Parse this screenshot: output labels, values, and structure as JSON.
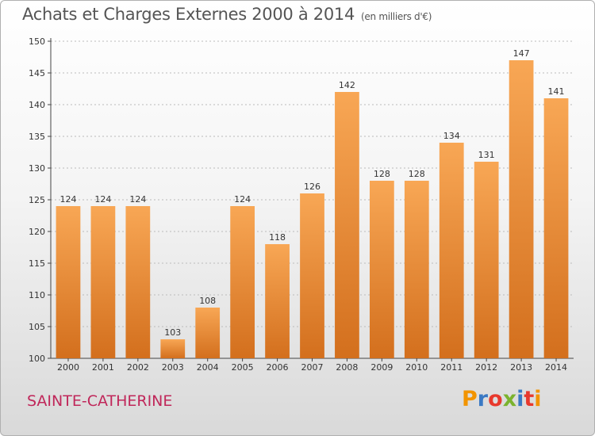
{
  "header": {
    "title": "Achats et Charges Externes 2000 à 2014",
    "subtitle": "(en milliers d'€)"
  },
  "footer": {
    "place": "SAINTE-CATHERINE",
    "logo": {
      "letters": [
        "P",
        "r",
        "o",
        "x",
        "i",
        "t",
        "i"
      ],
      "colors": [
        "#f29400",
        "#3a79c4",
        "#e8392d",
        "#7bb32e",
        "#3a79c4",
        "#e8392d",
        "#f29400"
      ]
    }
  },
  "colors": {
    "bar_light": "#f8a755",
    "bar_dark": "#d36f1d",
    "axis": "#444444",
    "grid": "#bbbbbb",
    "title": "#555555",
    "place": "#c0275a"
  },
  "chart_data": {
    "type": "bar",
    "categories": [
      "2000",
      "2001",
      "2002",
      "2003",
      "2004",
      "2005",
      "2006",
      "2007",
      "2008",
      "2009",
      "2010",
      "2011",
      "2012",
      "2013",
      "2014"
    ],
    "values": [
      124,
      124,
      124,
      103,
      108,
      124,
      118,
      126,
      142,
      128,
      128,
      134,
      131,
      147,
      141
    ],
    "ylim": [
      100,
      150
    ],
    "yticks": [
      100,
      105,
      110,
      115,
      120,
      125,
      130,
      135,
      140,
      145,
      150
    ],
    "grid": true
  }
}
